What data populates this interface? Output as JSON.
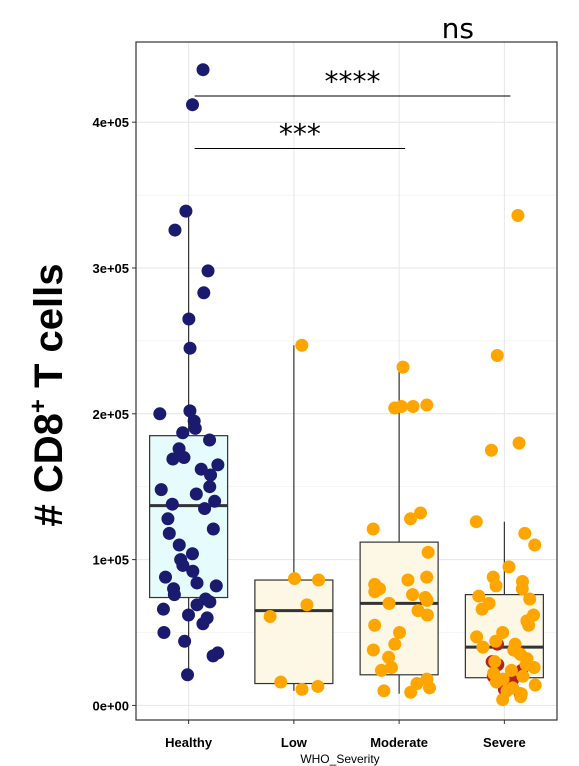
{
  "chart_data": {
    "type": "boxplot",
    "title": "",
    "ylabel_main": "# CD8",
    "ylabel_sup": "+",
    "ylabel_rest": " T cells",
    "xlabel": "WHO_Severity",
    "ylim": [
      -10000,
      455000
    ],
    "yticks": [
      {
        "value": 0,
        "label": "0e+00"
      },
      {
        "value": 100000,
        "label": "1e+05"
      },
      {
        "value": 200000,
        "label": "2e+05"
      },
      {
        "value": 300000,
        "label": "3e+05"
      },
      {
        "value": 400000,
        "label": "4e+05"
      }
    ],
    "categories": [
      "Healthy",
      "Low",
      "Moderate",
      "Severe"
    ],
    "colors": {
      "Healthy": {
        "point": "#1a1a6e",
        "fill": "#e6fbfb"
      },
      "Low": {
        "point": "#ffa500",
        "fill": "#fdf8e6"
      },
      "Moderate": {
        "point": "#ffa500",
        "fill": "#fdf8e6"
      },
      "Severe": {
        "point": "#ffa500",
        "fill": "#fdf8e6"
      },
      "severe_dark": "#b22222",
      "box_line": "#333333",
      "median_line": "#333333"
    },
    "boxes": [
      {
        "category": "Healthy",
        "q1": 74000,
        "median": 137000,
        "q3": 185000,
        "whisker_low": 20000,
        "whisker_high": 339000
      },
      {
        "category": "Low",
        "q1": 15000,
        "median": 65000,
        "q3": 86000,
        "whisker_low": 10000,
        "whisker_high": 247000
      },
      {
        "category": "Moderate",
        "q1": 21000,
        "median": 70000,
        "q3": 112000,
        "whisker_low": 8000,
        "whisker_high": 232000
      },
      {
        "category": "Severe",
        "q1": 19000,
        "median": 40000,
        "q3": 76000,
        "whisker_low": 3000,
        "whisker_high": 126000
      }
    ],
    "points": {
      "Healthy": [
        436000,
        412000,
        339000,
        326000,
        298000,
        283000,
        265000,
        245000,
        202000,
        200000,
        195000,
        190000,
        187000,
        182000,
        176000,
        170000,
        169000,
        165000,
        162000,
        158000,
        150000,
        148000,
        145000,
        140000,
        138000,
        135000,
        128000,
        121000,
        118000,
        110000,
        104000,
        100000,
        96000,
        92000,
        88000,
        84000,
        82000,
        80000,
        76000,
        73000,
        71000,
        69000,
        66000,
        62000,
        60000,
        56000,
        50000,
        44000,
        36000,
        34000,
        21000
      ],
      "Low": [
        247000,
        87000,
        86000,
        69000,
        61000,
        16000,
        13000,
        11000
      ],
      "Moderate": [
        232000,
        206000,
        205000,
        205000,
        204000,
        132000,
        128000,
        121000,
        105000,
        88000,
        86000,
        83000,
        80000,
        78000,
        76000,
        74000,
        72000,
        70000,
        65000,
        62000,
        55000,
        50000,
        42000,
        38000,
        33000,
        26000,
        24000,
        18000,
        15000,
        12000,
        10000,
        9000
      ],
      "Severe": [
        336000,
        240000,
        180000,
        175000,
        126000,
        118000,
        110000,
        95000,
        88000,
        85000,
        82000,
        80000,
        75000,
        73000,
        70000,
        66000,
        62000,
        58000,
        55000,
        50000,
        47000,
        44000,
        42000,
        40000,
        38000,
        35000,
        32000,
        30000,
        28000,
        26000,
        24000,
        22000,
        20000,
        18000,
        16000,
        14000,
        12000,
        10000,
        8000,
        6000,
        4000
      ],
      "Severe_dark": [
        42000,
        37000,
        30000,
        28000,
        24000,
        20000,
        17000,
        14000,
        11000,
        8000
      ]
    },
    "significance": [
      {
        "from": "Healthy",
        "to": "Moderate",
        "label": "***",
        "y": 382000
      },
      {
        "from": "Healthy",
        "to": "Severe",
        "label": "****",
        "y": 418000
      },
      {
        "from": "Moderate",
        "to": "Severe",
        "label": "ns",
        "y": 455000
      }
    ]
  }
}
